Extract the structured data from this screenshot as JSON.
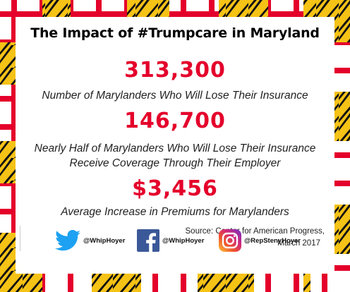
{
  "title": "The Impact of #Trumpcare in Maryland",
  "stats": [
    {
      "value": "313,300",
      "description": "Number of Marylanders Who Will Lose Their Insurance"
    },
    {
      "value": "146,700",
      "description_line1": "Nearly Half of Marylanders Who Will Lose Their Insurance",
      "description_line2": "Receive Coverage Through Their Employer"
    },
    {
      "value": "$3,456",
      "description": "Average Increase in Premiums for Marylanders"
    }
  ],
  "source": {
    "line1": "Source: Center for American Progress,",
    "line2": "March 2017"
  },
  "social": [
    {
      "icon": "twitter-icon",
      "handle": "@WhipHoyer"
    },
    {
      "icon": "facebook-icon",
      "handle": "@WhipHoyer"
    },
    {
      "icon": "instagram-icon",
      "handle": "@RepStenyHoyer"
    }
  ],
  "colors": {
    "accent_red": "#e4002b",
    "flag_gold": "#f5c216",
    "flag_black": "#111111",
    "flag_red": "#e4002b",
    "twitter_blue": "#1da1f2",
    "facebook_blue": "#3b5998"
  }
}
